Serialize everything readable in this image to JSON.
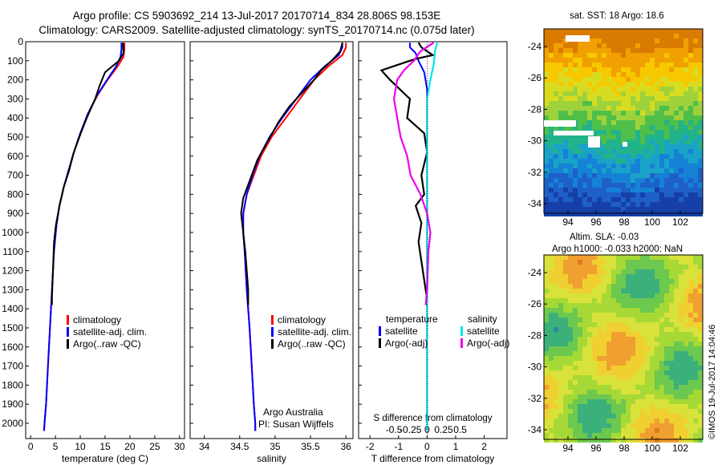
{
  "header": {
    "title_line1": "Argo profile: CS 5903692_214 13-Jul-2017 20170714_834 28.806S 98.153E",
    "title_line2": "Climatology: CARS2009. Satellite-adjusted climatology: synTS_20170714.nc (0.075d later)"
  },
  "map_panels": {
    "sst_title": "sat. SST: 18 Argo: 18.6",
    "sla_title_1": "Altim. SLA: -0.03",
    "sla_title_2": "Argo h1000: -0.033 h2000: NaN",
    "lat_ticks": [
      "-24",
      "-26",
      "-28",
      "-30",
      "-32",
      "-34"
    ],
    "lon_ticks": [
      "94",
      "96",
      "98",
      "100",
      "102"
    ],
    "stamp": "©IMOS 19-Jul-2017 14:04:46"
  },
  "colors": {
    "climatology": "#ff0000",
    "satellite": "#0000ff",
    "argo": "#000000",
    "s_satellite": "#00e5ee",
    "s_argo": "#ee00ee"
  },
  "chart_data": [
    {
      "type": "line",
      "xlabel": "temperature (deg C)",
      "ylabel": "",
      "xlim": [
        -1,
        31
      ],
      "ylim": [
        2080,
        0
      ],
      "x_ticks": [
        "0",
        "5",
        "10",
        "15",
        "20",
        "25",
        "30"
      ],
      "y_ticks": [
        "0",
        "100",
        "200",
        "300",
        "400",
        "500",
        "600",
        "700",
        "800",
        "900",
        "1000",
        "1100",
        "1200",
        "1300",
        "1400",
        "1500",
        "1600",
        "1700",
        "1800",
        "1900",
        "2000"
      ],
      "legend": [
        "climatology",
        "satellite-adj. clim.",
        "Argo(..raw -QC)"
      ],
      "series": [
        {
          "name": "climatology",
          "points": [
            [
              18.9,
              5
            ],
            [
              18.9,
              40
            ],
            [
              18.7,
              80
            ],
            [
              17.5,
              130
            ],
            [
              15.5,
              200
            ],
            [
              13.5,
              280
            ],
            [
              11.5,
              380
            ],
            [
              10,
              480
            ],
            [
              8.7,
              580
            ],
            [
              7.8,
              660
            ],
            [
              6.7,
              760
            ],
            [
              5.8,
              860
            ],
            [
              5.2,
              960
            ],
            [
              4.7,
              1100
            ],
            [
              4.3,
              1300
            ],
            [
              3.9,
              1500
            ],
            [
              3.5,
              1700
            ],
            [
              3.1,
              1900
            ],
            [
              2.8,
              2000
            ],
            [
              2.7,
              2040
            ]
          ]
        },
        {
          "name": "satellite-adj. clim.",
          "points": [
            [
              18.3,
              5
            ],
            [
              18.3,
              40
            ],
            [
              18.1,
              80
            ],
            [
              17.2,
              130
            ],
            [
              15.4,
              200
            ],
            [
              13.4,
              280
            ],
            [
              11.5,
              380
            ],
            [
              10,
              480
            ],
            [
              8.7,
              580
            ],
            [
              7.8,
              660
            ],
            [
              6.7,
              760
            ],
            [
              5.8,
              860
            ],
            [
              5.2,
              960
            ],
            [
              4.7,
              1100
            ],
            [
              4.3,
              1300
            ],
            [
              3.9,
              1500
            ],
            [
              3.5,
              1700
            ],
            [
              3.1,
              1900
            ],
            [
              2.8,
              2000
            ],
            [
              2.7,
              2040
            ]
          ]
        },
        {
          "name": "Argo(..raw -QC)",
          "points": [
            [
              18.6,
              5
            ],
            [
              18.7,
              60
            ],
            [
              17.8,
              100
            ],
            [
              15,
              160
            ],
            [
              13.9,
              230
            ],
            [
              13,
              300
            ],
            [
              11.3,
              400
            ],
            [
              10.1,
              480
            ],
            [
              8.7,
              580
            ],
            [
              7.7,
              680
            ],
            [
              6.7,
              760
            ],
            [
              5.8,
              860
            ],
            [
              5.1,
              960
            ],
            [
              4.7,
              1050
            ],
            [
              4.5,
              1200
            ],
            [
              4.3,
              1340
            ],
            [
              4.3,
              1380
            ]
          ]
        }
      ]
    },
    {
      "type": "line",
      "xlabel": "salinity",
      "ylabel": "",
      "xlim": [
        33.8,
        36.1
      ],
      "ylim": [
        2080,
        0
      ],
      "x_ticks": [
        "34",
        "34.5",
        "35",
        "35.5",
        "36"
      ],
      "legend": [
        "climatology",
        "satellite-adj. clim.",
        "Argo(..raw -QC)"
      ],
      "annotations": [
        "Argo Australia",
        "PI: Susan Wijffels"
      ],
      "series": [
        {
          "name": "climatology",
          "points": [
            [
              36.0,
              5
            ],
            [
              36.0,
              30
            ],
            [
              35.95,
              70
            ],
            [
              35.75,
              130
            ],
            [
              35.55,
              200
            ],
            [
              35.35,
              300
            ],
            [
              35.15,
              400
            ],
            [
              34.95,
              500
            ],
            [
              34.8,
              600
            ],
            [
              34.7,
              700
            ],
            [
              34.6,
              800
            ],
            [
              34.55,
              900
            ],
            [
              34.55,
              1000
            ],
            [
              34.57,
              1100
            ],
            [
              34.6,
              1300
            ],
            [
              34.64,
              1500
            ],
            [
              34.67,
              1700
            ],
            [
              34.7,
              1900
            ],
            [
              34.72,
              2000
            ],
            [
              34.72,
              2040
            ]
          ]
        },
        {
          "name": "satellite-adj. clim.",
          "points": [
            [
              35.95,
              5
            ],
            [
              35.95,
              30
            ],
            [
              35.9,
              70
            ],
            [
              35.7,
              130
            ],
            [
              35.5,
              200
            ],
            [
              35.3,
              300
            ],
            [
              35.1,
              400
            ],
            [
              34.92,
              500
            ],
            [
              34.78,
              600
            ],
            [
              34.68,
              700
            ],
            [
              34.6,
              800
            ],
            [
              34.55,
              900
            ],
            [
              34.55,
              1000
            ],
            [
              34.57,
              1100
            ],
            [
              34.6,
              1300
            ],
            [
              34.64,
              1500
            ],
            [
              34.67,
              1700
            ],
            [
              34.7,
              1900
            ],
            [
              34.72,
              2000
            ],
            [
              34.72,
              2040
            ]
          ]
        },
        {
          "name": "Argo(..raw -QC)",
          "points": [
            [
              35.95,
              5
            ],
            [
              35.92,
              50
            ],
            [
              35.8,
              100
            ],
            [
              35.65,
              150
            ],
            [
              35.55,
              200
            ],
            [
              35.4,
              260
            ],
            [
              35.2,
              340
            ],
            [
              35.05,
              420
            ],
            [
              34.9,
              520
            ],
            [
              34.75,
              620
            ],
            [
              34.65,
              720
            ],
            [
              34.55,
              820
            ],
            [
              34.52,
              900
            ],
            [
              34.55,
              1000
            ],
            [
              34.58,
              1100
            ],
            [
              34.6,
              1200
            ],
            [
              34.62,
              1300
            ],
            [
              34.62,
              1380
            ]
          ]
        }
      ]
    },
    {
      "type": "line",
      "xlabel": "T difference from climatology",
      "ylabel": "",
      "xlim": [
        -2.4,
        2.8
      ],
      "ylim": [
        2080,
        0
      ],
      "x_ticks": [
        "-2",
        "-1",
        "0",
        "1",
        "2"
      ],
      "x2label": "S difference from climatology",
      "x2_ticks": [
        "-0.5",
        "-0.25",
        "0",
        "0.25",
        "0.5"
      ],
      "legend_temperature": "temperature",
      "legend_salinity": "salinity",
      "legend": [
        "satellite",
        "Argo(-adj)",
        "satellite",
        "Argo(-adj)"
      ],
      "series": [
        {
          "name": "temperature satellite",
          "points": [
            [
              -0.6,
              5
            ],
            [
              -0.6,
              30
            ],
            [
              -0.4,
              60
            ],
            [
              -0.3,
              100
            ],
            [
              -0.1,
              160
            ],
            [
              0,
              250
            ],
            [
              0,
              400
            ],
            [
              0,
              600
            ],
            [
              0,
              800
            ],
            [
              0,
              1000
            ],
            [
              0,
              1500
            ],
            [
              0,
              2040
            ]
          ]
        },
        {
          "name": "temperature Argo(-adj)",
          "points": [
            [
              -0.3,
              5
            ],
            [
              -0.2,
              30
            ],
            [
              0.2,
              70
            ],
            [
              -0.4,
              90
            ],
            [
              -1.2,
              130
            ],
            [
              -1.6,
              150
            ],
            [
              -1.3,
              200
            ],
            [
              -0.6,
              300
            ],
            [
              -0.7,
              400
            ],
            [
              -0.1,
              480
            ],
            [
              0,
              580
            ],
            [
              -0.2,
              700
            ],
            [
              -0.1,
              800
            ],
            [
              -0.4,
              860
            ],
            [
              -0.2,
              950
            ],
            [
              -0.3,
              1050
            ],
            [
              -0.2,
              1150
            ],
            [
              -0.1,
              1250
            ],
            [
              0,
              1350
            ],
            [
              -0.05,
              1380
            ]
          ]
        },
        {
          "name": "salinity satellite",
          "points": [
            [
              0.15,
              5
            ],
            [
              0.12,
              50
            ],
            [
              0.1,
              120
            ],
            [
              0.05,
              200
            ],
            [
              0,
              300
            ],
            [
              0,
              500
            ],
            [
              0,
              800
            ],
            [
              0,
              1200
            ],
            [
              0,
              1600
            ],
            [
              0,
              2040
            ]
          ]
        },
        {
          "name": "salinity Argo(-adj)",
          "points": [
            [
              0.1,
              5
            ],
            [
              -0.1,
              50
            ],
            [
              -0.2,
              100
            ],
            [
              -0.35,
              150
            ],
            [
              -0.45,
              200
            ],
            [
              -0.5,
              300
            ],
            [
              -0.45,
              400
            ],
            [
              -0.4,
              500
            ],
            [
              -0.3,
              600
            ],
            [
              -0.25,
              700
            ],
            [
              -0.1,
              800
            ],
            [
              0,
              900
            ],
            [
              0.05,
              1000
            ],
            [
              0.02,
              1100
            ],
            [
              0,
              1300
            ],
            [
              -0.02,
              1380
            ]
          ]
        }
      ]
    }
  ]
}
